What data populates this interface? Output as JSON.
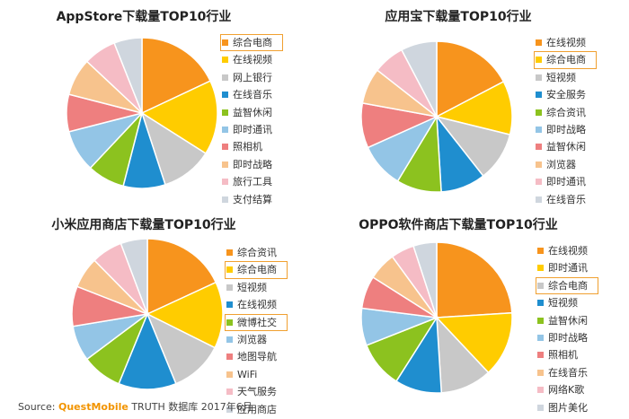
{
  "source": {
    "prefix": "Source:",
    "brand": "QuestMobile",
    "suffix": "TRUTH 数据库 2017年6月"
  },
  "chart_data": [
    {
      "type": "pie",
      "title": "AppStore下载量TOP10行业",
      "categories": [
        "综合电商",
        "在线视频",
        "网上银行",
        "在线音乐",
        "益智休闲",
        "即时通讯",
        "照相机",
        "即时战略",
        "旅行工具",
        "支付结算"
      ],
      "values": [
        18,
        16,
        11,
        9,
        8,
        9,
        8,
        8,
        7,
        6
      ],
      "highlighted": [
        "综合电商"
      ]
    },
    {
      "type": "pie",
      "title": "应用宝下载量TOP10行业",
      "categories": [
        "在线视频",
        "综合电商",
        "短视频",
        "安全服务",
        "综合资讯",
        "即时战略",
        "益智休闲",
        "浏览器",
        "即时通讯",
        "在线音乐"
      ],
      "values": [
        18,
        12,
        11,
        10,
        10,
        10,
        10,
        8,
        7,
        8
      ],
      "highlighted": [
        "综合电商"
      ]
    },
    {
      "type": "pie",
      "title": "小米应用商店下载量TOP10行业",
      "categories": [
        "综合资讯",
        "综合电商",
        "短视频",
        "在线视频",
        "微博社交",
        "浏览器",
        "地图导航",
        "WiFi",
        "天气服务",
        "应用商店"
      ],
      "values": [
        19,
        15,
        12,
        13,
        9,
        8,
        9,
        7,
        7,
        6
      ],
      "highlighted": [
        "综合电商",
        "微博社交"
      ]
    },
    {
      "type": "pie",
      "title": "OPPO软件商店下载量TOP10行业",
      "categories": [
        "在线视频",
        "即时通讯",
        "综合电商",
        "短视频",
        "益智休闲",
        "即时战略",
        "照相机",
        "在线音乐",
        "网络K歌",
        "图片美化"
      ],
      "values": [
        24,
        14,
        11,
        10,
        10,
        8,
        7,
        6,
        5,
        5
      ],
      "highlighted": [
        "综合电商"
      ]
    }
  ]
}
